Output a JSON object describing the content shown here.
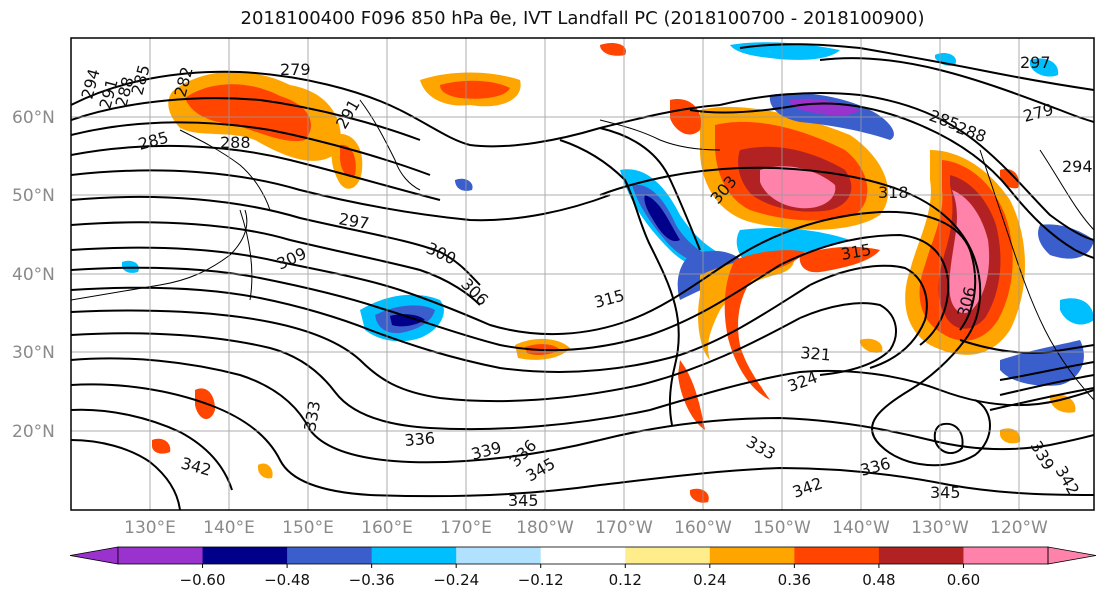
{
  "title": "2018100400 F096 850 hPa θe, IVT Landfall PC (2018100700 - 2018100900)",
  "map": {
    "lat_labels": [
      "60°N",
      "50°N",
      "40°N",
      "30°N",
      "20°N"
    ],
    "lon_labels": [
      "130°E",
      "140°E",
      "150°E",
      "160°E",
      "170°E",
      "180°W",
      "170°W",
      "160°W",
      "150°W",
      "140°W",
      "130°W",
      "120°W"
    ],
    "contour_labels": [
      "294",
      "291",
      "288",
      "285",
      "282",
      "279",
      "285",
      "288",
      "291",
      "297",
      "309",
      "300",
      "306",
      "315",
      "303",
      "318",
      "315",
      "306",
      "321",
      "324",
      "333",
      "336",
      "339",
      "336",
      "345",
      "342",
      "345",
      "342",
      "333",
      "336",
      "345",
      "294",
      "279",
      "285",
      "288",
      "297",
      "339",
      "342"
    ]
  },
  "colorbar": {
    "colors": [
      "#9a32cd",
      "#00008b",
      "#3a5fcd",
      "#00bfff",
      "#b0e2ff",
      "#ffffff",
      "#ffec8b",
      "#ffa500",
      "#ff4500",
      "#b22222",
      "#ff82ab"
    ],
    "tick_labels": [
      "−0.60",
      "−0.48",
      "−0.36",
      "−0.24",
      "−0.12",
      "0.12",
      "0.24",
      "0.36",
      "0.48",
      "0.60"
    ]
  }
}
